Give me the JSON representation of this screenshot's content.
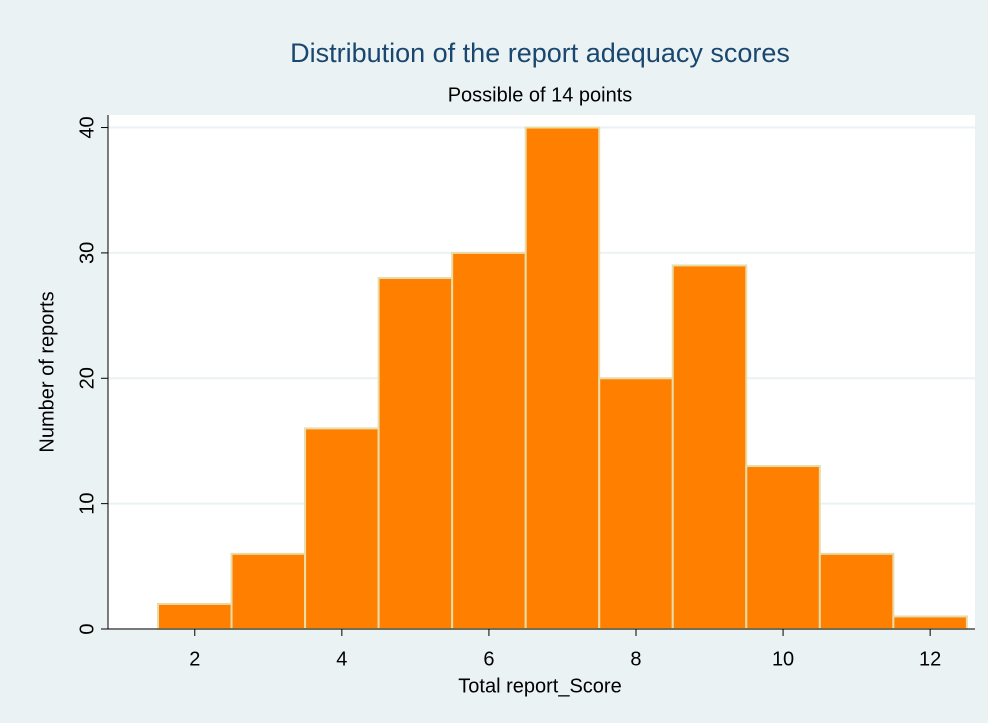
{
  "chart_data": {
    "type": "histogram",
    "title": "Distribution of the report adequacy scores",
    "subtitle": "Possible of 14 points",
    "x_label": "Total report_Score",
    "y_label": "Number of reports",
    "bins": [
      1.5,
      2.5,
      3.5,
      4.5,
      5.5,
      6.5,
      7.5,
      8.5,
      9.5,
      10.5,
      11.5,
      12.5
    ],
    "values": [
      2,
      6,
      16,
      28,
      30,
      40,
      20,
      29,
      13,
      6,
      1
    ],
    "color": "#ff8000",
    "xlim": [
      0.82,
      12.61
    ],
    "xticks": [
      2,
      4,
      6,
      8,
      10,
      12
    ],
    "ylim": [
      0,
      41
    ],
    "yticks": [
      0,
      10,
      20,
      30,
      40
    ],
    "grid": true
  }
}
